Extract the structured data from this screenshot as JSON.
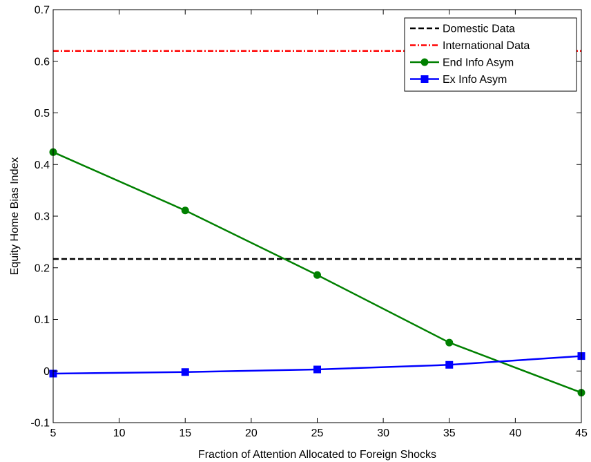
{
  "chart_data": {
    "type": "line",
    "title": "",
    "xlabel": "Fraction of Attention Allocated to Foreign Shocks",
    "ylabel": "Equity Home Bias Index",
    "xlim": [
      5,
      45
    ],
    "ylim": [
      -0.1,
      0.7
    ],
    "xticks": [
      5,
      10,
      15,
      20,
      25,
      30,
      35,
      40,
      45
    ],
    "yticks": [
      -0.1,
      0,
      0.1,
      0.2,
      0.3,
      0.4,
      0.5,
      0.6,
      0.7
    ],
    "ytick_labels": [
      "-0.1",
      "0",
      "0.1",
      "0.2",
      "0.3",
      "0.4",
      "0.5",
      "0.6",
      "0.7"
    ],
    "grid": false,
    "legend_position": "top-right",
    "series": [
      {
        "name": "Domestic Data",
        "color": "#000000",
        "style": "dashed",
        "marker": "none",
        "x": [
          5,
          45
        ],
        "y": [
          0.217,
          0.217
        ]
      },
      {
        "name": "International Data",
        "color": "#ff0000",
        "style": "dashdot",
        "marker": "none",
        "x": [
          5,
          45
        ],
        "y": [
          0.62,
          0.62
        ]
      },
      {
        "name": "End Info Asym",
        "color": "#008000",
        "style": "solid",
        "marker": "circle",
        "x": [
          5,
          15,
          25,
          35,
          45
        ],
        "y": [
          0.424,
          0.311,
          0.186,
          0.055,
          -0.042
        ]
      },
      {
        "name": "Ex Info Asym",
        "color": "#0000ff",
        "style": "solid",
        "marker": "square",
        "x": [
          5,
          15,
          25,
          35,
          45
        ],
        "y": [
          -0.005,
          -0.002,
          0.003,
          0.012,
          0.029
        ]
      }
    ]
  }
}
